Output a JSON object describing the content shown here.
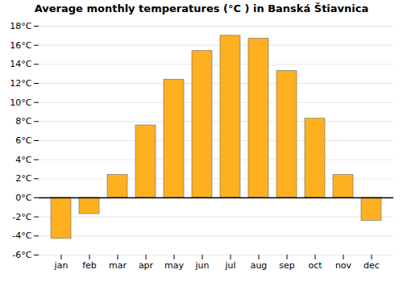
{
  "chart_data": {
    "type": "bar",
    "title": "Average monthly temperatures (°C ) in Banská Štiavnica",
    "categories": [
      "jan",
      "feb",
      "mar",
      "apr",
      "may",
      "jun",
      "jul",
      "aug",
      "sep",
      "oct",
      "nov",
      "dec"
    ],
    "values": [
      -4.3,
      -1.7,
      2.4,
      7.6,
      12.4,
      15.4,
      17.0,
      16.7,
      13.3,
      8.3,
      2.4,
      -2.4
    ],
    "color": "#FFB020",
    "ylim": [
      -6,
      18
    ],
    "yticks": [
      {
        "value": -6,
        "label": "-6°C"
      },
      {
        "value": -4,
        "label": "-4°C"
      },
      {
        "value": -2,
        "label": "-2°C"
      },
      {
        "value": 0,
        "label": "0°C"
      },
      {
        "value": 2,
        "label": "2°C"
      },
      {
        "value": 4,
        "label": "4°C"
      },
      {
        "value": 6,
        "label": "6°C"
      },
      {
        "value": 8,
        "label": "8°C"
      },
      {
        "value": 10,
        "label": "10°C"
      },
      {
        "value": 12,
        "label": "12°C"
      },
      {
        "value": 14,
        "label": "14°C"
      },
      {
        "value": 16,
        "label": "16°C"
      },
      {
        "value": 18,
        "label": "18°C"
      }
    ],
    "grid": true
  }
}
